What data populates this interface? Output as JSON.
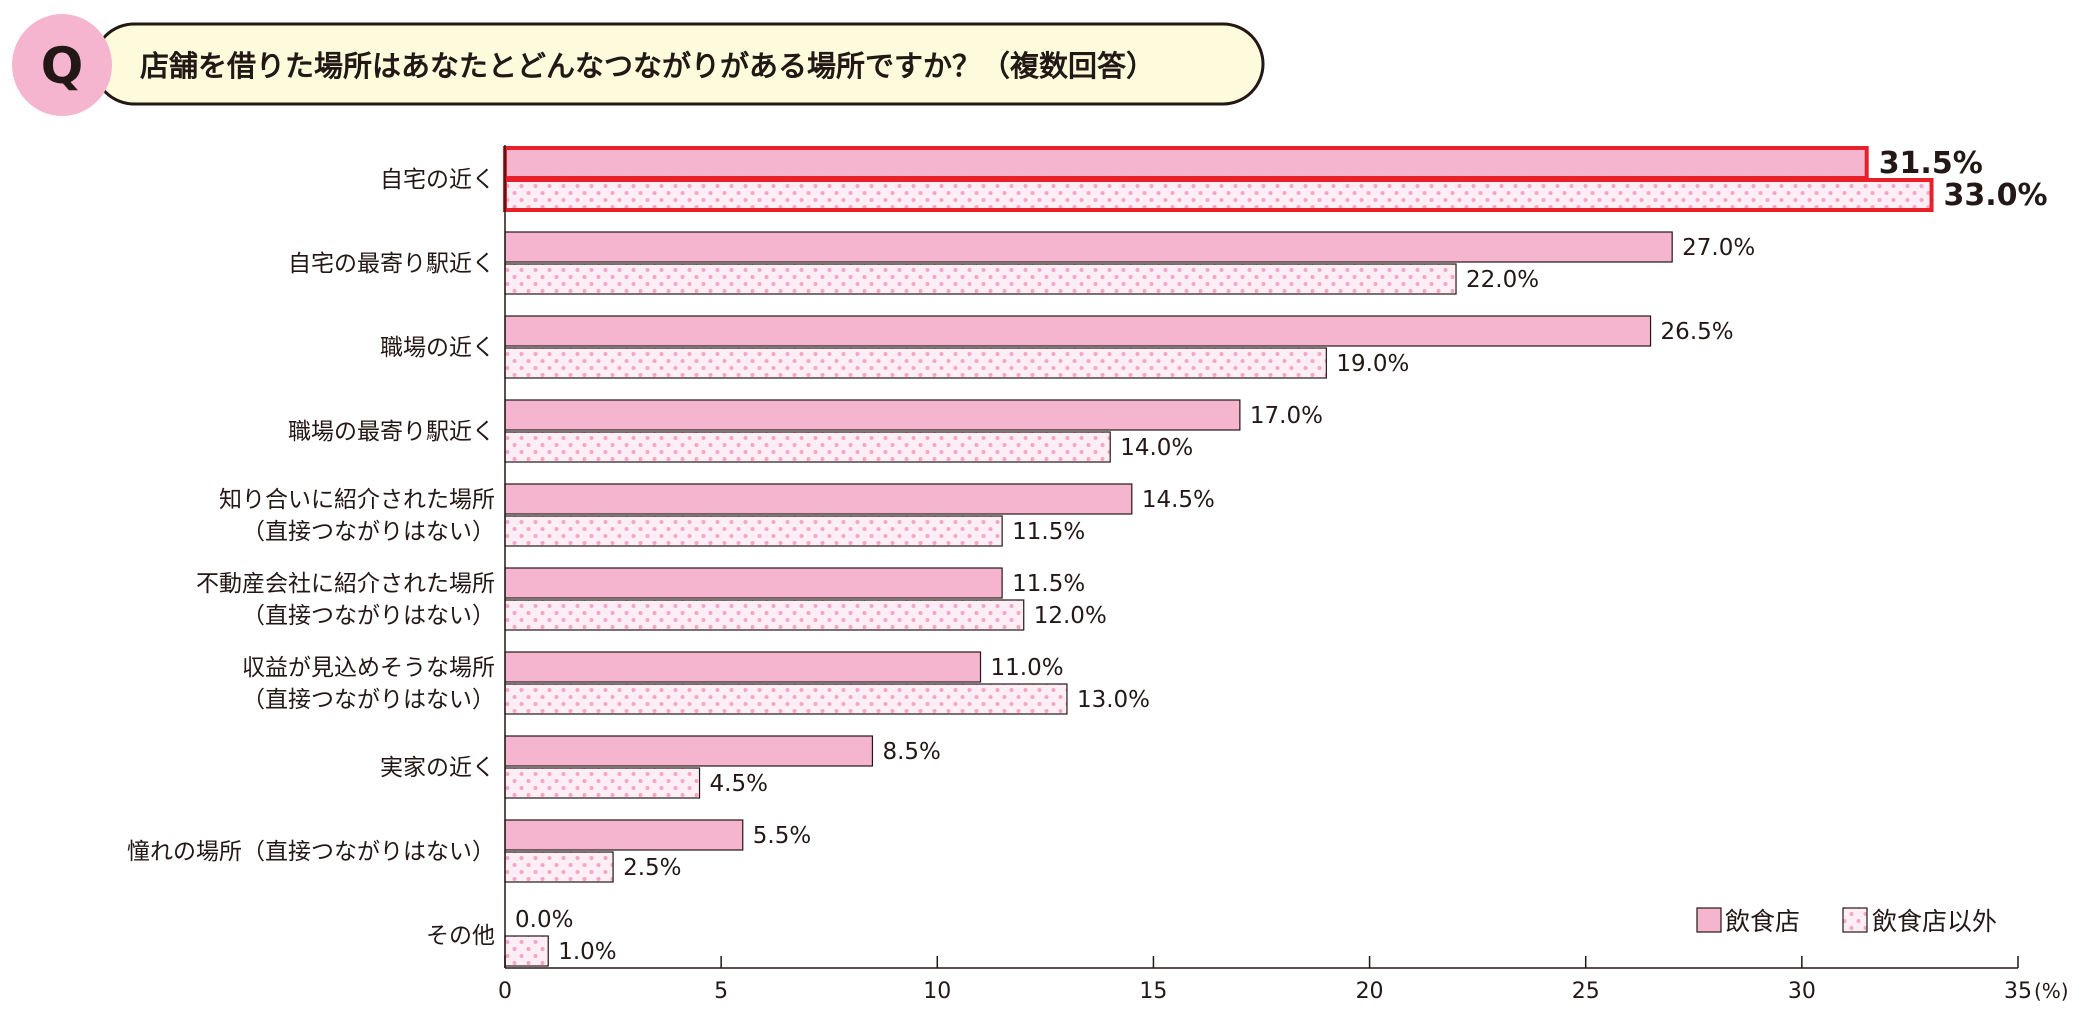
{
  "header": {
    "badge": "Q",
    "question": "店舗を借りた場所はあなたとどんなつながりがある場所ですか？（複数回答）"
  },
  "colors": {
    "restaurant": "#f5b5cf",
    "non_restaurant_bg": "#fdeef5",
    "non_restaurant_dot": "#f5a5c5",
    "highlight": "#e8202a",
    "bubble": "#fdfbdc"
  },
  "chart_data": {
    "type": "bar",
    "orientation": "horizontal",
    "categories": [
      [
        "自宅の近く"
      ],
      [
        "自宅の最寄り駅近く"
      ],
      [
        "職場の近く"
      ],
      [
        "職場の最寄り駅近く"
      ],
      [
        "知り合いに紹介された場所",
        "（直接つながりはない）"
      ],
      [
        "不動産会社に紹介された場所",
        "（直接つながりはない）"
      ],
      [
        "収益が見込めそうな場所",
        "（直接つながりはない）"
      ],
      [
        "実家の近く"
      ],
      [
        "憧れの場所（直接つながりはない）"
      ],
      [
        "その他"
      ]
    ],
    "series": [
      {
        "name": "飲食店",
        "values": [
          31.5,
          27.0,
          26.5,
          17.0,
          14.5,
          11.5,
          11.0,
          8.5,
          5.5,
          0.0
        ]
      },
      {
        "name": "飲食店以外",
        "values": [
          33.0,
          22.0,
          19.0,
          14.0,
          11.5,
          12.0,
          13.0,
          4.5,
          2.5,
          1.0
        ]
      }
    ],
    "highlighted_category_index": 0,
    "xlim": [
      0,
      35
    ],
    "xticks": [
      0,
      5,
      10,
      15,
      20,
      25,
      30,
      35
    ],
    "xunit": "(%)",
    "legend_position": "bottom-right",
    "grid": false
  }
}
